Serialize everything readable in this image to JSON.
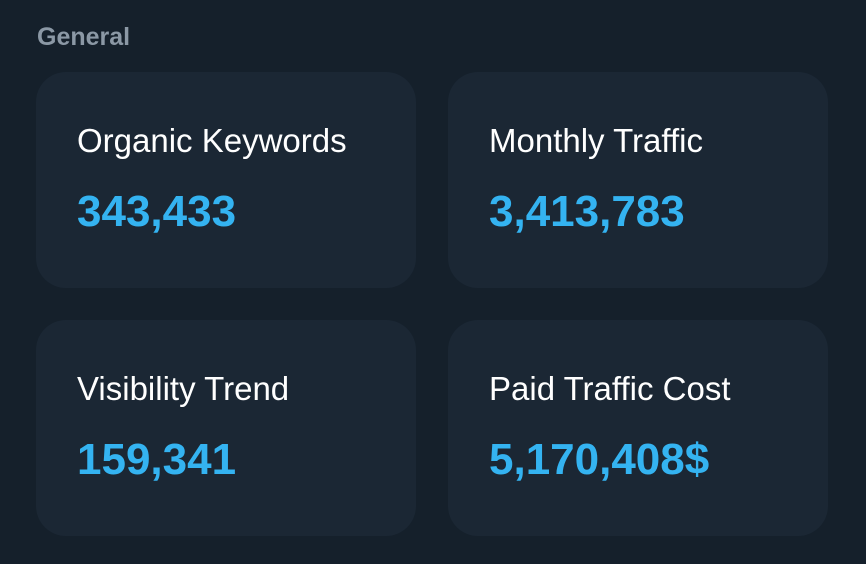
{
  "section": {
    "title": "General"
  },
  "stats": [
    {
      "label": "Organic Keywords",
      "value": "343,433"
    },
    {
      "label": "Monthly Traffic",
      "value": "3,413,783"
    },
    {
      "label": "Visibility Trend",
      "value": "159,341"
    },
    {
      "label": "Paid Traffic Cost",
      "value": "5,170,408$"
    }
  ],
  "colors": {
    "background": "#15202b",
    "card": "#1b2734",
    "label": "#ffffff",
    "value": "#34b3f1",
    "section_title": "#8b98a5"
  }
}
